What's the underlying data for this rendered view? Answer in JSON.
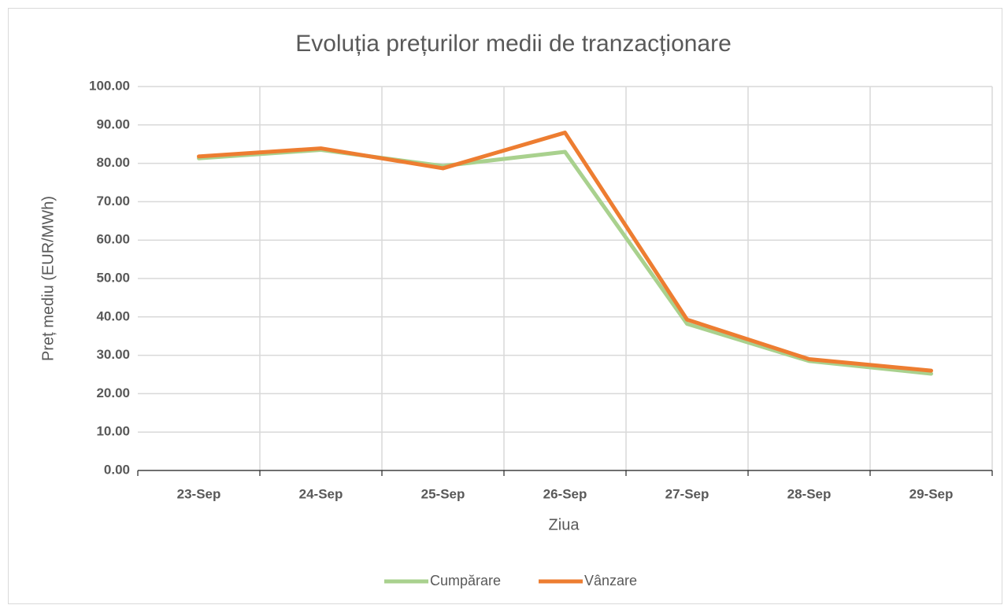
{
  "chart_data": {
    "type": "line",
    "title": "Evoluția prețurilor medii de tranzacționare",
    "x_label": "Ziua",
    "y_label": "Preț mediu (EUR/MWh)",
    "categories": [
      "23-Sep",
      "24-Sep",
      "25-Sep",
      "26-Sep",
      "27-Sep",
      "28-Sep",
      "29-Sep"
    ],
    "series": [
      {
        "name": "Cumpărare",
        "color": "#a9d18e",
        "values": [
          81.3,
          83.5,
          79.3,
          83.0,
          38.2,
          28.5,
          25.2
        ]
      },
      {
        "name": "Vânzare",
        "color": "#ed7d31",
        "values": [
          81.8,
          83.9,
          78.7,
          88.0,
          39.3,
          29.0,
          26.0
        ]
      }
    ],
    "ylim": [
      0,
      100
    ],
    "yticks": [
      {
        "value": 0,
        "label": "0.00"
      },
      {
        "value": 10,
        "label": "10.00"
      },
      {
        "value": 20,
        "label": "20.00"
      },
      {
        "value": 30,
        "label": "30.00"
      },
      {
        "value": 40,
        "label": "40.00"
      },
      {
        "value": 50,
        "label": "50.00"
      },
      {
        "value": 60,
        "label": "60.00"
      },
      {
        "value": 70,
        "label": "70.00"
      },
      {
        "value": 80,
        "label": "80.00"
      },
      {
        "value": 90,
        "label": "90.00"
      },
      {
        "value": 100,
        "label": "100.00"
      }
    ],
    "grid": true,
    "legend": "bottom"
  }
}
